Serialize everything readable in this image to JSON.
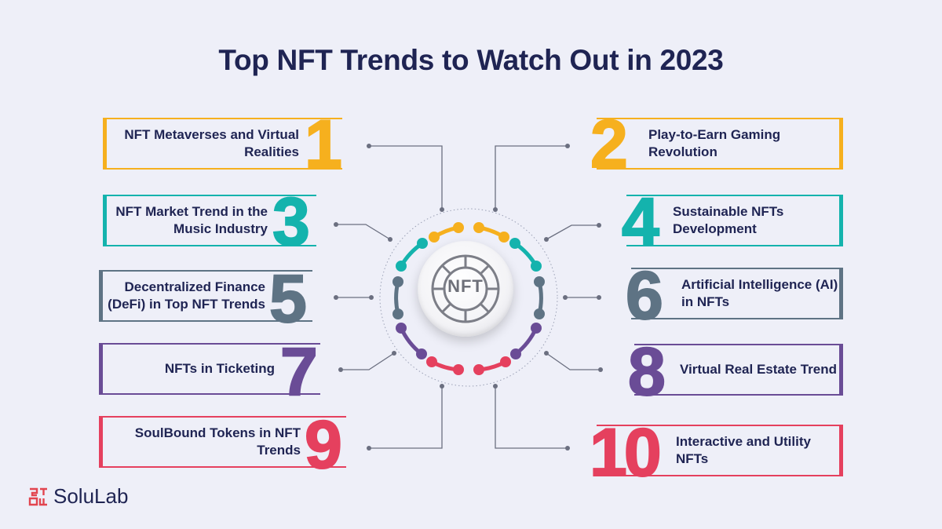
{
  "title": "Top NFT Trends to Watch Out in 2023",
  "hub": {
    "label": "NFT"
  },
  "brand": {
    "name": "SoluLab",
    "color": "#e2454f"
  },
  "colors": {
    "yellow": "#f6b01e",
    "teal": "#14b3ad",
    "slate": "#5e7384",
    "purple": "#6a4c96",
    "red": "#e5405e",
    "navy": "#1f2453"
  },
  "trends": [
    {
      "number": "1",
      "label": "NFT Metaverses and Virtual Realities",
      "color": "#f6b01e"
    },
    {
      "number": "2",
      "label": "Play-to-Earn Gaming Revolution",
      "color": "#f6b01e"
    },
    {
      "number": "3",
      "label": "NFT Market Trend in the Music Industry",
      "color": "#14b3ad"
    },
    {
      "number": "4",
      "label": "Sustainable NFTs Development",
      "color": "#14b3ad"
    },
    {
      "number": "5",
      "label": "Decentralized Finance (DeFi) in Top NFT Trends",
      "color": "#5e7384"
    },
    {
      "number": "6",
      "label": "Artificial Intelligence (AI) in NFTs",
      "color": "#5e7384"
    },
    {
      "number": "7",
      "label": "NFTs in Ticketing",
      "color": "#6a4c96"
    },
    {
      "number": "8",
      "label": "Virtual Real Estate Trend",
      "color": "#6a4c96"
    },
    {
      "number": "9",
      "label": "SoulBound Tokens in NFT Trends",
      "color": "#e5405e"
    },
    {
      "number": "10",
      "label": "Interactive and Utility NFTs",
      "color": "#e5405e"
    }
  ]
}
